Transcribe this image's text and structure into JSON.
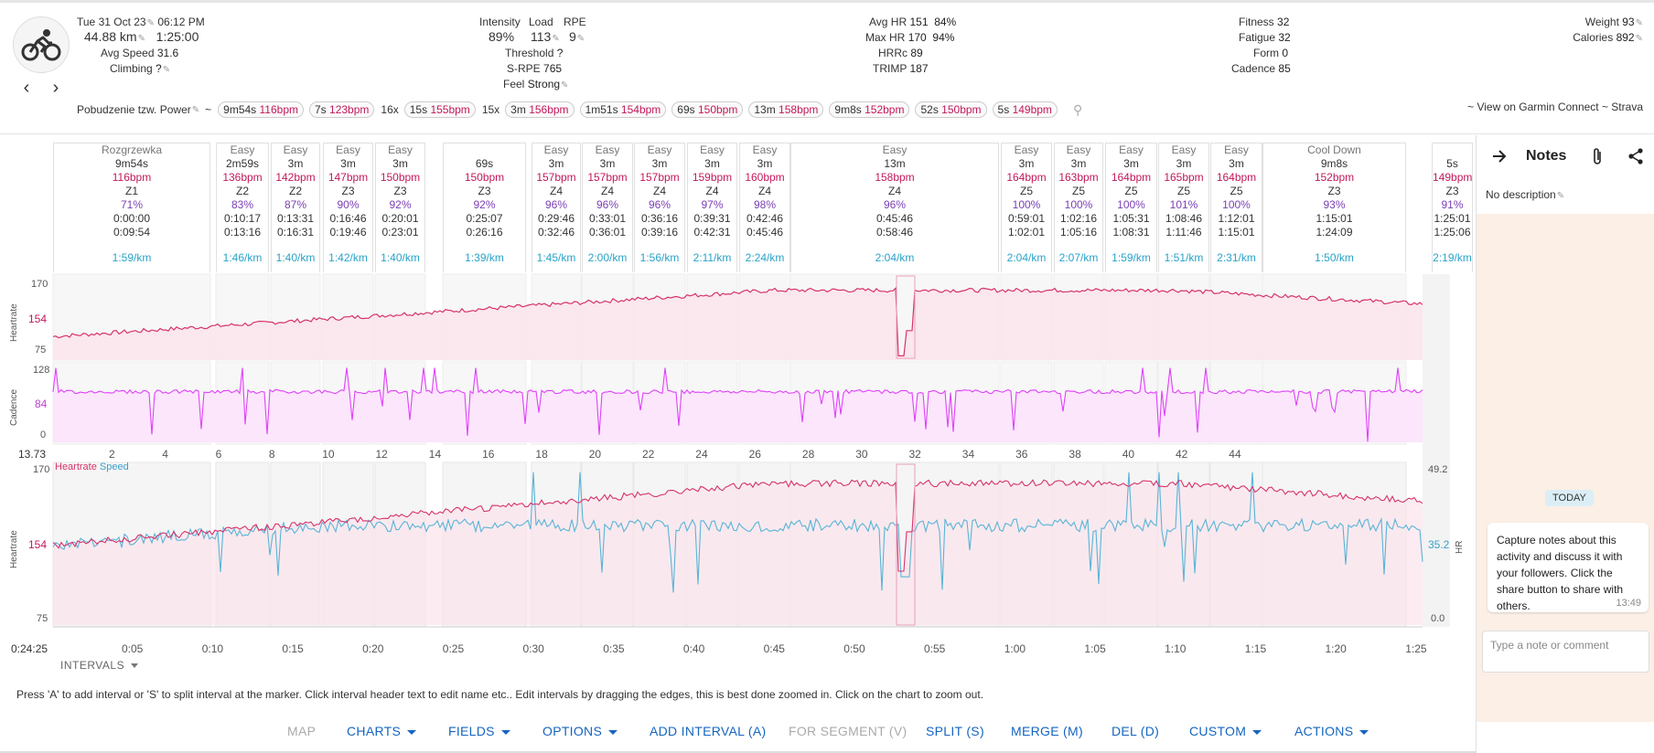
{
  "header": {
    "datetime": "Tue 31 Oct 23",
    "time": "06:12 PM",
    "distance": "44.88 km",
    "duration": "1:25:00",
    "avg_speed_label": "Avg Speed",
    "avg_speed": "31.6",
    "climbing_label": "Climbing",
    "climbing": "?",
    "intensity_label": "Intensity",
    "intensity": "89%",
    "load_label": "Load",
    "load": "113",
    "rpe_label": "RPE",
    "rpe": "9",
    "threshold_label": "Threshold",
    "threshold": "?",
    "srpe_label": "S-RPE",
    "srpe": "765",
    "feel_label": "Feel",
    "feel": "Strong",
    "avg_hr_label": "Avg HR",
    "avg_hr": "151",
    "avg_hr_pct": "84%",
    "max_hr_label": "Max HR",
    "max_hr": "170",
    "max_hr_pct": "94%",
    "hrrc_label": "HRRc",
    "hrrc": "89",
    "trimp_label": "TRIMP",
    "trimp": "187",
    "fitness_label": "Fitness",
    "fitness": "32",
    "fatigue_label": "Fatigue",
    "fatigue": "32",
    "form_label": "Form",
    "form": "0",
    "cadence_label": "Cadence",
    "cadence": "85",
    "weight_label": "Weight",
    "weight": "93",
    "calories_label": "Calories",
    "calories": "892",
    "prev": "‹",
    "next": "›"
  },
  "sequence": {
    "name": "Pobudzenie tzw. Power",
    "tilde": "~",
    "chips": [
      {
        "t": "9m54s",
        "b": "116bpm"
      },
      {
        "t": "7s",
        "b": "123bpm"
      },
      {
        "mult": "16x",
        "t": "15s",
        "b": "155bpm"
      },
      {
        "mult": "15x",
        "t": "3m",
        "b": "156bpm"
      },
      {
        "t": "1m51s",
        "b": "154bpm"
      },
      {
        "t": "69s",
        "b": "150bpm"
      },
      {
        "t": "13m",
        "b": "158bpm"
      },
      {
        "t": "9m8s",
        "b": "152bpm"
      },
      {
        "t": "52s",
        "b": "150bpm"
      },
      {
        "t": "5s",
        "b": "149bpm"
      }
    ],
    "links": "~ View on Garmin Connect ~ Strava"
  },
  "intervals": [
    {
      "name": "Rozgrzewka",
      "dur": "9m54s",
      "bpm": "116bpm",
      "zone": "Z1",
      "pct": "71%",
      "start": "0:00:00",
      "end": "0:09:54",
      "pace": "1:59/km"
    },
    {
      "name": "Easy",
      "dur": "2m59s",
      "bpm": "136bpm",
      "zone": "Z2",
      "pct": "83%",
      "start": "0:10:17",
      "end": "0:13:16",
      "pace": "1:46/km"
    },
    {
      "name": "Easy",
      "dur": "3m",
      "bpm": "142bpm",
      "zone": "Z2",
      "pct": "87%",
      "start": "0:13:31",
      "end": "0:16:31",
      "pace": "1:40/km"
    },
    {
      "name": "Easy",
      "dur": "3m",
      "bpm": "147bpm",
      "zone": "Z3",
      "pct": "90%",
      "start": "0:16:46",
      "end": "0:19:46",
      "pace": "1:42/km"
    },
    {
      "name": "Easy",
      "dur": "3m",
      "bpm": "150bpm",
      "zone": "Z3",
      "pct": "92%",
      "start": "0:20:01",
      "end": "0:23:01",
      "pace": "1:40/km"
    },
    {
      "name": "",
      "dur": "69s",
      "bpm": "150bpm",
      "zone": "Z3",
      "pct": "92%",
      "start": "0:25:07",
      "end": "0:26:16",
      "pace": "1:39/km"
    },
    {
      "name": "Easy",
      "dur": "3m",
      "bpm": "157bpm",
      "zone": "Z4",
      "pct": "96%",
      "start": "0:29:46",
      "end": "0:32:46",
      "pace": "1:45/km"
    },
    {
      "name": "Easy",
      "dur": "3m",
      "bpm": "157bpm",
      "zone": "Z4",
      "pct": "96%",
      "start": "0:33:01",
      "end": "0:36:01",
      "pace": "2:00/km"
    },
    {
      "name": "Easy",
      "dur": "3m",
      "bpm": "157bpm",
      "zone": "Z4",
      "pct": "96%",
      "start": "0:36:16",
      "end": "0:39:16",
      "pace": "1:56/km"
    },
    {
      "name": "Easy",
      "dur": "3m",
      "bpm": "159bpm",
      "zone": "Z4",
      "pct": "97%",
      "start": "0:39:31",
      "end": "0:42:31",
      "pace": "2:11/km"
    },
    {
      "name": "Easy",
      "dur": "3m",
      "bpm": "160bpm",
      "zone": "Z4",
      "pct": "98%",
      "start": "0:42:46",
      "end": "0:45:46",
      "pace": "2:24/km"
    },
    {
      "name": "Easy",
      "dur": "13m",
      "bpm": "158bpm",
      "zone": "Z4",
      "pct": "96%",
      "start": "0:45:46",
      "end": "0:58:46",
      "pace": "2:04/km"
    },
    {
      "name": "Easy",
      "dur": "3m",
      "bpm": "164bpm",
      "zone": "Z5",
      "pct": "100%",
      "start": "0:59:01",
      "end": "1:02:01",
      "pace": "2:04/km"
    },
    {
      "name": "Easy",
      "dur": "3m",
      "bpm": "163bpm",
      "zone": "Z5",
      "pct": "100%",
      "start": "1:02:16",
      "end": "1:05:16",
      "pace": "2:07/km"
    },
    {
      "name": "Easy",
      "dur": "3m",
      "bpm": "164bpm",
      "zone": "Z5",
      "pct": "100%",
      "start": "1:05:31",
      "end": "1:08:31",
      "pace": "1:59/km"
    },
    {
      "name": "Easy",
      "dur": "3m",
      "bpm": "165bpm",
      "zone": "Z5",
      "pct": "101%",
      "start": "1:08:46",
      "end": "1:11:46",
      "pace": "1:51/km"
    },
    {
      "name": "Easy",
      "dur": "3m",
      "bpm": "164bpm",
      "zone": "Z5",
      "pct": "100%",
      "start": "1:12:01",
      "end": "1:15:01",
      "pace": "2:31/km"
    },
    {
      "name": "Cool Down",
      "dur": "9m8s",
      "bpm": "152bpm",
      "zone": "Z3",
      "pct": "93%",
      "start": "1:15:01",
      "end": "1:24:09",
      "pace": "1:50/km"
    },
    {
      "name": "",
      "dur": "5s",
      "bpm": "149bpm",
      "zone": "Z3",
      "pct": "91%",
      "start": "1:25:01",
      "end": "1:25:06",
      "pace": "2:19/km"
    }
  ],
  "charts": {
    "hr_top": {
      "label": "Heartrate",
      "ticks": [
        "170",
        "154",
        "75"
      ]
    },
    "cadence": {
      "label": "Cadence",
      "ticks": [
        "128",
        "84",
        "0"
      ]
    },
    "km_axis": {
      "start": "13.73",
      "ticks": [
        "2",
        "4",
        "6",
        "8",
        "10",
        "12",
        "14",
        "16",
        "18",
        "20",
        "22",
        "24",
        "26",
        "28",
        "30",
        "32",
        "34",
        "36",
        "38",
        "40",
        "42",
        "44"
      ]
    },
    "combo": {
      "legend_hr": "Heartrate",
      "legend_speed": "Speed",
      "left_label": "Heartrate",
      "left_ticks": [
        "170",
        "154",
        "75"
      ],
      "right_ticks": [
        "49.2",
        "35.2",
        "0.0"
      ],
      "right_label": "HR"
    },
    "time_axis": {
      "start": "0:24:25",
      "ticks": [
        "0:05",
        "0:10",
        "0:15",
        "0:20",
        "0:25",
        "0:30",
        "0:35",
        "0:40",
        "0:45",
        "0:50",
        "0:55",
        "1:00",
        "1:05",
        "1:10",
        "1:15",
        "1:20",
        "1:25"
      ]
    },
    "colors": {
      "hr": "#d6336c",
      "cadence": "#e040fb",
      "speed": "#5ab4d6",
      "hr_fill": "#fbe4ec",
      "cad_fill": "#fbe6fb"
    }
  },
  "intervals_menu": "INTERVALS",
  "help_text": "Press 'A' to add interval or 'S' to split interval at the marker. Click interval header text to edit name etc.. Edit intervals by dragging the edges, this is best done zoomed in. Click on the chart to zoom out.",
  "toolbar": {
    "map": "MAP",
    "charts": "CHARTS",
    "fields": "FIELDS",
    "options": "OPTIONS",
    "add_interval": "ADD INTERVAL (A)",
    "for_segment": "FOR SEGMENT (V)",
    "split": "SPLIT (S)",
    "merge": "MERGE (M)",
    "del": "DEL (D)",
    "custom": "CUSTOM",
    "actions": "ACTIONS"
  },
  "notes": {
    "title": "Notes",
    "no_description": "No description",
    "today": "TODAY",
    "message": "Capture notes about this activity and discuss it with your followers. Click the share button to share with others.",
    "message_time": "13:49",
    "input_placeholder": "Type a note or comment"
  }
}
